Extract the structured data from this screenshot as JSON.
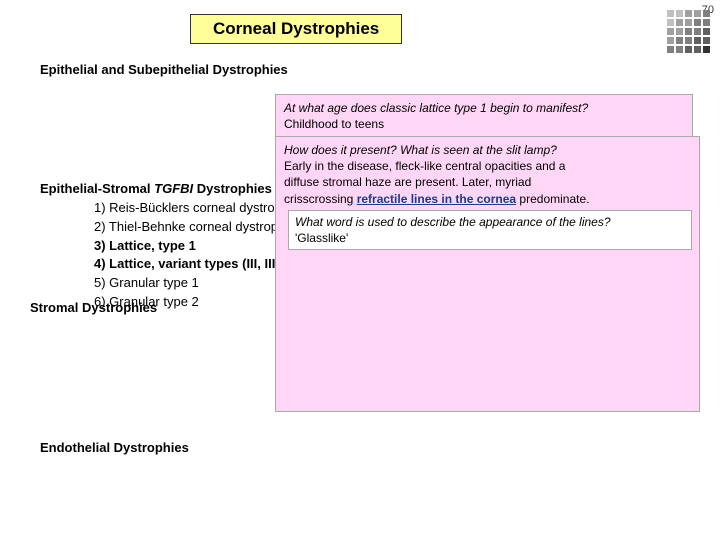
{
  "pageNumber": "70",
  "title": "Corneal Dystrophies",
  "sections": {
    "epithelial": "Epithelial and Subepithelial Dystrophies",
    "stromal": "Stromal Dystrophies",
    "endothelial": "Endothelial Dystrophies"
  },
  "tgfbi": {
    "headingPrefix": "Epithelial-Stromal ",
    "headingItalic": "TGFBI",
    "headingSuffix": " Dystrophies",
    "items": [
      "1) Reis-Bücklers corneal dystrop",
      "2) Thiel-Behnke corneal dystrop",
      "3) Lattice, type 1",
      "4) Lattice, variant types (III, III",
      "5) Granular type 1",
      "6) Granular type 2"
    ],
    "boldIndexes": [
      2,
      3
    ]
  },
  "qa1": {
    "question": "At what age does classic lattice type 1 begin to manifest?",
    "answer": "Childhood to teens"
  },
  "qa2": {
    "question": "How does it present? What is seen at the slit lamp?",
    "answerLine1": "Early in the disease, fleck-like central opacities and a",
    "answerLine2": "diffuse stromal haze are present. Later, myriad",
    "answerLine3a": "crisscrossing ",
    "answerLine3b": "refractile lines in the cornea",
    "answerLine3c": " predominate."
  },
  "qa3": {
    "question": "What word is used to describe the appearance of the lines?",
    "answer": "'Glasslike'"
  },
  "decoration": {
    "rows": 5,
    "cols": 5,
    "colors": [
      "#c0c0c0",
      "#a0a0a0",
      "#808080",
      "#606060",
      "#333333"
    ]
  }
}
